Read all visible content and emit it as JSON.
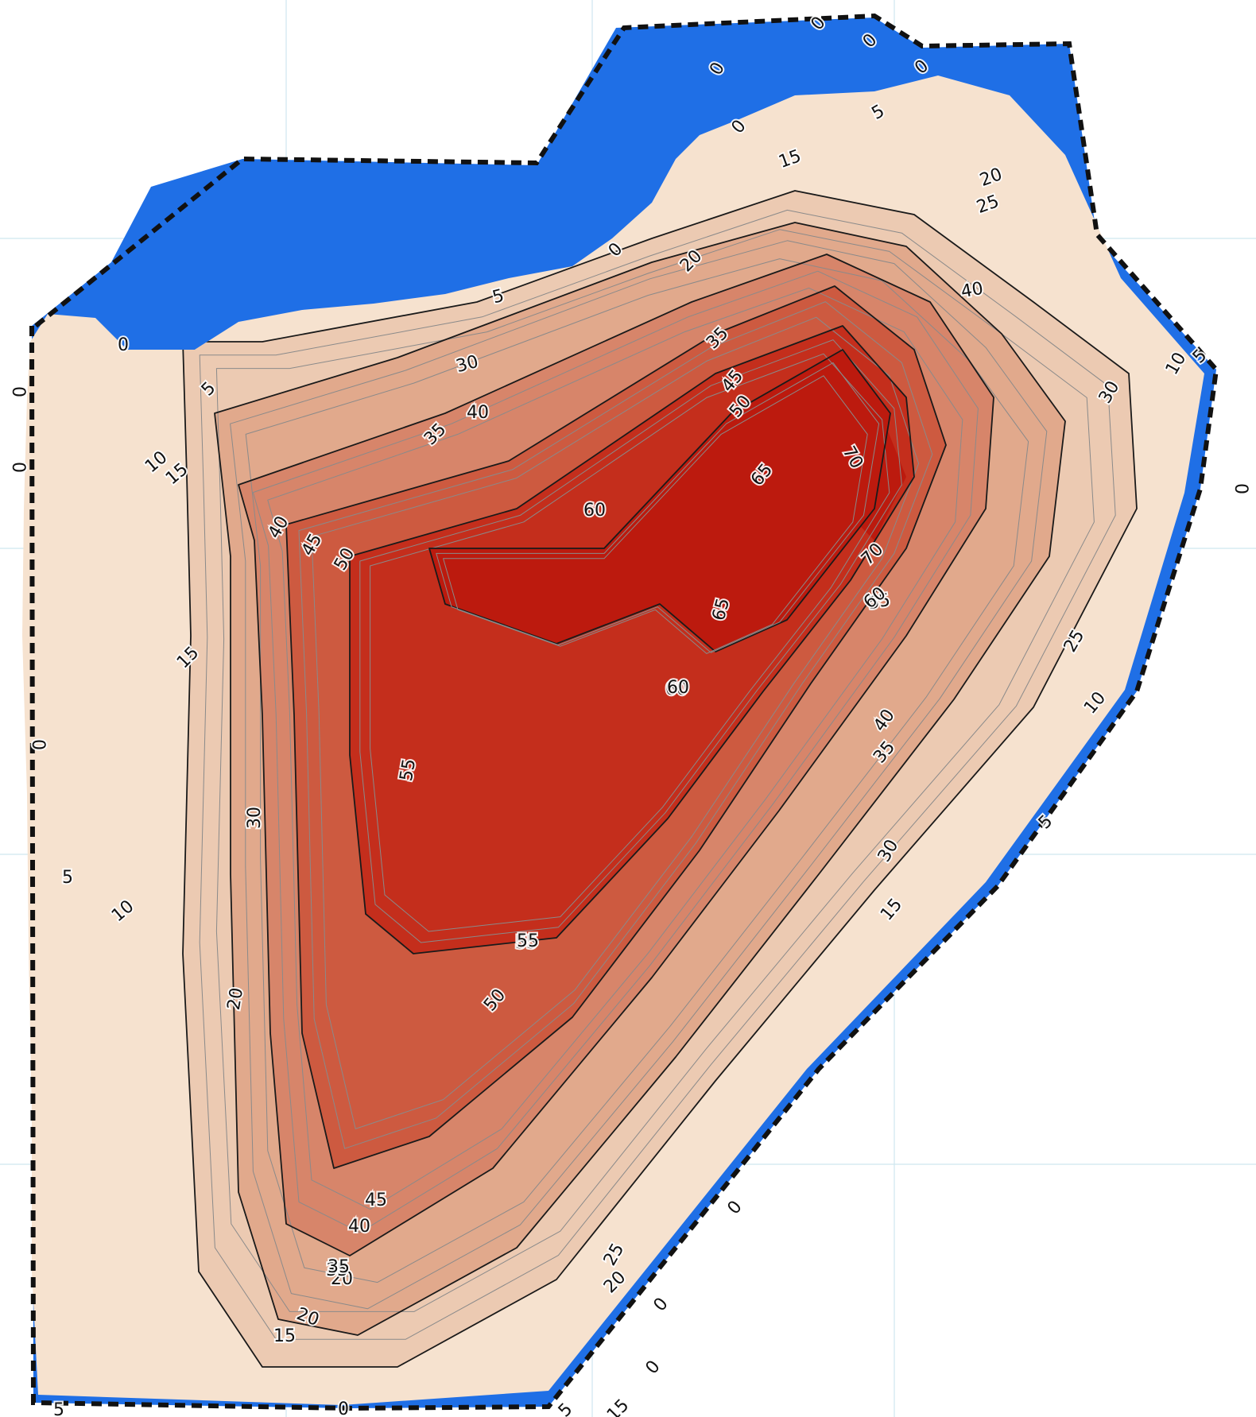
{
  "map": {
    "colors": {
      "background": "#ffffff",
      "water": "#1f6fe6",
      "grid": "#cfe7ef",
      "boundary": "#111111",
      "ramp": [
        "#f6e2cf",
        "#eccab2",
        "#e1a98c",
        "#d7856a",
        "#cd5a40",
        "#c42e1c",
        "#bc1a0e"
      ],
      "contour_major": "#1a1a1a",
      "contour_minor": "#8a8a8a"
    },
    "contour_labels": [
      "0",
      "0",
      "0",
      "0",
      "0",
      "0",
      "0",
      "0",
      "0",
      "0",
      "0",
      "0",
      "0",
      "0",
      "0",
      "5",
      "5",
      "5",
      "5",
      "5",
      "5",
      "5",
      "5",
      "10",
      "10",
      "10",
      "10",
      "15",
      "15",
      "15",
      "15",
      "15",
      "15",
      "20",
      "20",
      "20",
      "20",
      "20",
      "20",
      "25",
      "25",
      "25",
      "30",
      "30",
      "30",
      "30",
      "35",
      "35",
      "35",
      "35",
      "35",
      "40",
      "40",
      "40",
      "40",
      "40",
      "45",
      "45",
      "45",
      "50",
      "50",
      "50",
      "55",
      "55",
      "55",
      "55",
      "60",
      "60",
      "60",
      "60",
      "65",
      "65",
      "70",
      "70"
    ]
  }
}
